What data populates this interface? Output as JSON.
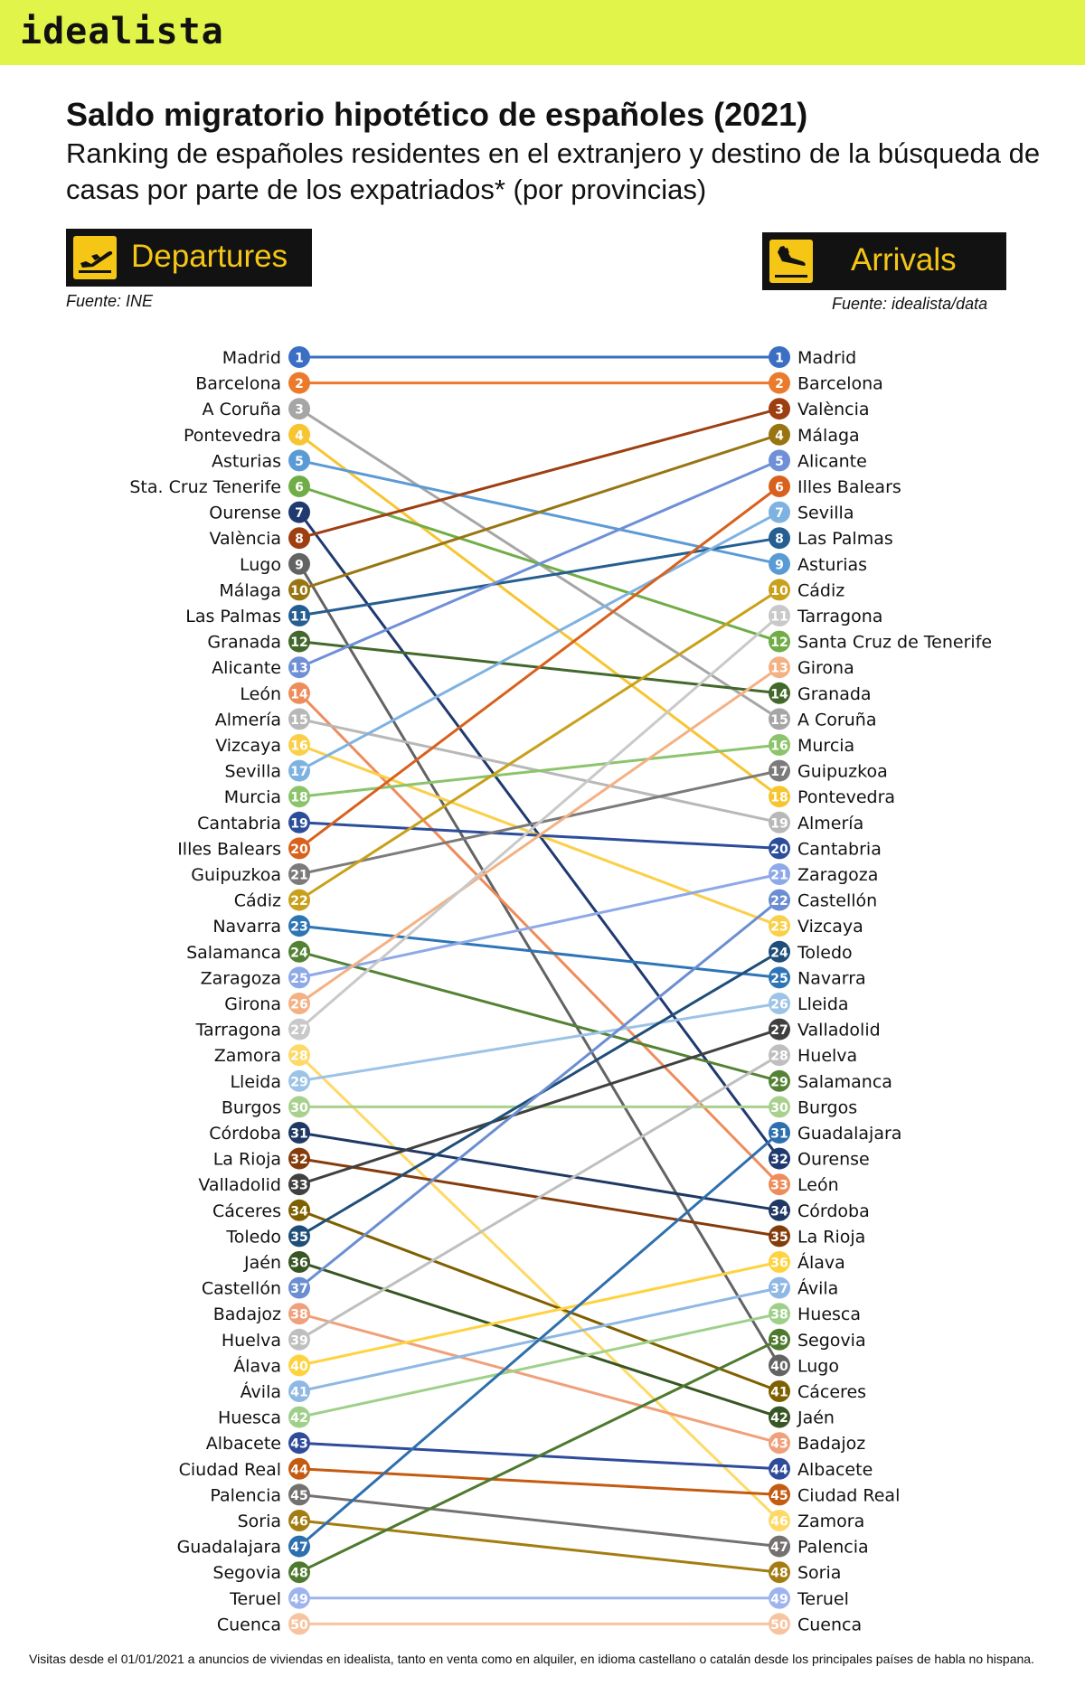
{
  "brand": {
    "logo": "idealista"
  },
  "header": {
    "title": "Saldo migratorio hipotético de españoles (2021)",
    "subtitle": "Ranking de españoles residentes en el extranjero y destino de la búsqueda de casas por parte de los expatriados* (por provincias)"
  },
  "departures": {
    "label": "Departures",
    "source": "Fuente: INE",
    "icon": "plane-takeoff-icon"
  },
  "arrivals": {
    "label": "Arrivals",
    "source": "Fuente: idealista/data",
    "icon": "plane-landing-icon"
  },
  "footnote": "Visitas desde el 01/01/2021 a anuncios de viviendas en idealista, tanto en venta como en alquiler, en idioma castellano o catalán desde los principales países de habla no hispana.",
  "chart_data": {
    "type": "slope",
    "left_axis": "Departures",
    "right_axis": "Arrivals",
    "left": [
      {
        "name": "Madrid",
        "rank": 1,
        "right_rank": 1,
        "color": "#3b6fc4"
      },
      {
        "name": "Barcelona",
        "rank": 2,
        "right_rank": 2,
        "color": "#ec7a2c"
      },
      {
        "name": "A Coruña",
        "rank": 3,
        "right_rank": 15,
        "color": "#a6a6a6"
      },
      {
        "name": "Pontevedra",
        "rank": 4,
        "right_rank": 18,
        "color": "#f7c531"
      },
      {
        "name": "Asturias",
        "rank": 5,
        "right_rank": 9,
        "color": "#5b9bd5"
      },
      {
        "name": "Sta. Cruz Tenerife",
        "rank": 6,
        "right_rank": 12,
        "color": "#70ad47"
      },
      {
        "name": "Ourense",
        "rank": 7,
        "right_rank": 32,
        "color": "#203a70"
      },
      {
        "name": "València",
        "rank": 8,
        "right_rank": 3,
        "color": "#9e3f12"
      },
      {
        "name": "Lugo",
        "rank": 9,
        "right_rank": 40,
        "color": "#636363"
      },
      {
        "name": "Málaga",
        "rank": 10,
        "right_rank": 4,
        "color": "#997512"
      },
      {
        "name": "Las Palmas",
        "rank": 11,
        "right_rank": 8,
        "color": "#255e91"
      },
      {
        "name": "Granada",
        "rank": 12,
        "right_rank": 14,
        "color": "#43682b"
      },
      {
        "name": "Alicante",
        "rank": 13,
        "right_rank": 5,
        "color": "#6f8fd6"
      },
      {
        "name": "León",
        "rank": 14,
        "right_rank": 33,
        "color": "#ee8c5b"
      },
      {
        "name": "Almería",
        "rank": 15,
        "right_rank": 19,
        "color": "#b8b8b8"
      },
      {
        "name": "Vizcaya",
        "rank": 16,
        "right_rank": 23,
        "color": "#fad04a"
      },
      {
        "name": "Sevilla",
        "rank": 17,
        "right_rank": 7,
        "color": "#7eb2e0"
      },
      {
        "name": "Murcia",
        "rank": 18,
        "right_rank": 16,
        "color": "#8cc46b"
      },
      {
        "name": "Cantabria",
        "rank": 19,
        "right_rank": 20,
        "color": "#2c4d9a"
      },
      {
        "name": "Illes Balears",
        "rank": 20,
        "right_rank": 6,
        "color": "#d8611d"
      },
      {
        "name": "Guipuzkoa",
        "rank": 21,
        "right_rank": 17,
        "color": "#7b7b7b"
      },
      {
        "name": "Cádiz",
        "rank": 22,
        "right_rank": 10,
        "color": "#c9a01a"
      },
      {
        "name": "Navarra",
        "rank": 23,
        "right_rank": 25,
        "color": "#2e75b6"
      },
      {
        "name": "Salamanca",
        "rank": 24,
        "right_rank": 29,
        "color": "#548235"
      },
      {
        "name": "Zaragoza",
        "rank": 25,
        "right_rank": 21,
        "color": "#8ea9e8"
      },
      {
        "name": "Girona",
        "rank": 26,
        "right_rank": 13,
        "color": "#f4b183"
      },
      {
        "name": "Tarragona",
        "rank": 27,
        "right_rank": 11,
        "color": "#c9c9c9"
      },
      {
        "name": "Zamora",
        "rank": 28,
        "right_rank": 46,
        "color": "#ffd966"
      },
      {
        "name": "Lleida",
        "rank": 29,
        "right_rank": 26,
        "color": "#9dc3e6"
      },
      {
        "name": "Burgos",
        "rank": 30,
        "right_rank": 30,
        "color": "#a9d18e"
      },
      {
        "name": "Córdoba",
        "rank": 31,
        "right_rank": 34,
        "color": "#1f3864"
      },
      {
        "name": "La Rioja",
        "rank": 32,
        "right_rank": 35,
        "color": "#843c0c"
      },
      {
        "name": "Valladolid",
        "rank": 33,
        "right_rank": 27,
        "color": "#404040"
      },
      {
        "name": "Cáceres",
        "rank": 34,
        "right_rank": 41,
        "color": "#7f6000"
      },
      {
        "name": "Toledo",
        "rank": 35,
        "right_rank": 24,
        "color": "#1f4e79"
      },
      {
        "name": "Jaén",
        "rank": 36,
        "right_rank": 42,
        "color": "#375623"
      },
      {
        "name": "Castellón",
        "rank": 37,
        "right_rank": 22,
        "color": "#6b8ed1"
      },
      {
        "name": "Badajoz",
        "rank": 38,
        "right_rank": 43,
        "color": "#f0a07a"
      },
      {
        "name": "Huelva",
        "rank": 39,
        "right_rank": 28,
        "color": "#bfbfbf"
      },
      {
        "name": "Álava",
        "rank": 40,
        "right_rank": 36,
        "color": "#ffd23f"
      },
      {
        "name": "Ávila",
        "rank": 41,
        "right_rank": 37,
        "color": "#8fb8e4"
      },
      {
        "name": "Huesca",
        "rank": 42,
        "right_rank": 38,
        "color": "#9fd08a"
      },
      {
        "name": "Albacete",
        "rank": 43,
        "right_rank": 44,
        "color": "#2f4b9a"
      },
      {
        "name": "Ciudad Real",
        "rank": 44,
        "right_rank": 45,
        "color": "#c55a11"
      },
      {
        "name": "Palencia",
        "rank": 45,
        "right_rank": 47,
        "color": "#767171"
      },
      {
        "name": "Soria",
        "rank": 46,
        "right_rank": 48,
        "color": "#a37d12"
      },
      {
        "name": "Guadalajara",
        "rank": 47,
        "right_rank": 31,
        "color": "#2e6fae"
      },
      {
        "name": "Segovia",
        "rank": 48,
        "right_rank": 39,
        "color": "#4e7a2f"
      },
      {
        "name": "Teruel",
        "rank": 49,
        "right_rank": 49,
        "color": "#9fb4ef"
      },
      {
        "name": "Cuenca",
        "rank": 50,
        "right_rank": 50,
        "color": "#f8c3a0"
      }
    ],
    "right": [
      {
        "name": "Madrid",
        "rank": 1
      },
      {
        "name": "Barcelona",
        "rank": 2
      },
      {
        "name": "València",
        "rank": 3
      },
      {
        "name": "Málaga",
        "rank": 4
      },
      {
        "name": "Alicante",
        "rank": 5
      },
      {
        "name": "Illes Balears",
        "rank": 6
      },
      {
        "name": "Sevilla",
        "rank": 7
      },
      {
        "name": "Las Palmas",
        "rank": 8
      },
      {
        "name": "Asturias",
        "rank": 9
      },
      {
        "name": "Cádiz",
        "rank": 10
      },
      {
        "name": "Tarragona",
        "rank": 11
      },
      {
        "name": "Santa Cruz de Tenerife",
        "rank": 12
      },
      {
        "name": "Girona",
        "rank": 13
      },
      {
        "name": "Granada",
        "rank": 14
      },
      {
        "name": "A Coruña",
        "rank": 15
      },
      {
        "name": "Murcia",
        "rank": 16
      },
      {
        "name": "Guipuzkoa",
        "rank": 17
      },
      {
        "name": "Pontevedra",
        "rank": 18
      },
      {
        "name": "Almería",
        "rank": 19
      },
      {
        "name": "Cantabria",
        "rank": 20
      },
      {
        "name": "Zaragoza",
        "rank": 21
      },
      {
        "name": "Castellón",
        "rank": 22
      },
      {
        "name": "Vizcaya",
        "rank": 23
      },
      {
        "name": "Toledo",
        "rank": 24
      },
      {
        "name": "Navarra",
        "rank": 25
      },
      {
        "name": "Lleida",
        "rank": 26
      },
      {
        "name": "Valladolid",
        "rank": 27
      },
      {
        "name": "Huelva",
        "rank": 28
      },
      {
        "name": "Salamanca",
        "rank": 29
      },
      {
        "name": "Burgos",
        "rank": 30
      },
      {
        "name": "Guadalajara",
        "rank": 31
      },
      {
        "name": "Ourense",
        "rank": 32
      },
      {
        "name": "León",
        "rank": 33
      },
      {
        "name": "Córdoba",
        "rank": 34
      },
      {
        "name": "La Rioja",
        "rank": 35
      },
      {
        "name": "Álava",
        "rank": 36
      },
      {
        "name": "Ávila",
        "rank": 37
      },
      {
        "name": "Huesca",
        "rank": 38
      },
      {
        "name": "Segovia",
        "rank": 39
      },
      {
        "name": "Lugo",
        "rank": 40
      },
      {
        "name": "Cáceres",
        "rank": 41
      },
      {
        "name": "Jaén",
        "rank": 42
      },
      {
        "name": "Badajoz",
        "rank": 43
      },
      {
        "name": "Albacete",
        "rank": 44
      },
      {
        "name": "Ciudad Real",
        "rank": 45
      },
      {
        "name": "Zamora",
        "rank": 46
      },
      {
        "name": "Palencia",
        "rank": 47
      },
      {
        "name": "Soria",
        "rank": 48
      },
      {
        "name": "Teruel",
        "rank": 49
      },
      {
        "name": "Cuenca",
        "rank": 50
      }
    ]
  }
}
